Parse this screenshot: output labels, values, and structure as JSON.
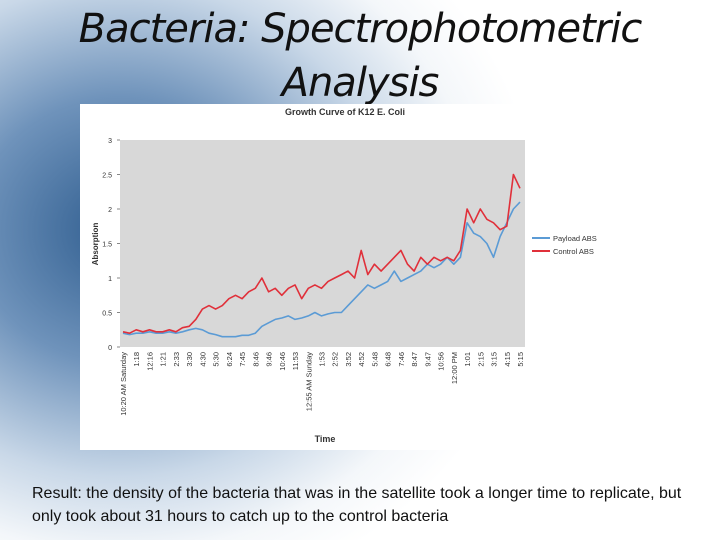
{
  "slide": {
    "title": "Bacteria: Spectrophotometric Analysis",
    "caption": "Result: the density of the bacteria that was in the satellite took a longer time to replicate, but only took about 31 hours to catch up to the control bacteria"
  },
  "chart_data": {
    "type": "line",
    "title": "Growth Curve of K12 E. Coli",
    "x_label": "Time",
    "y_label": "Absorption",
    "categories": [
      "10:20 AM Saturday",
      null,
      "1:18",
      null,
      "12:16",
      null,
      "1:21",
      null,
      "2:33",
      null,
      "3:30",
      null,
      "4:30",
      null,
      "5:30",
      null,
      "6:24",
      null,
      "7:45",
      null,
      "8:46",
      null,
      "9:46",
      null,
      "10:46",
      null,
      "11:53",
      null,
      "12:55 AM Sunday",
      null,
      "1:53",
      null,
      "2:52",
      null,
      "3:52",
      null,
      "4:52",
      null,
      "5:48",
      null,
      "6:48",
      null,
      "7:46",
      null,
      "8:47",
      null,
      "9:47",
      null,
      "10:56",
      null,
      "12:00 PM",
      null,
      "1:01",
      null,
      "2:15",
      null,
      "3:15",
      null,
      "4:15",
      null,
      "5:15"
    ],
    "series": [
      {
        "name": "Payload ABS",
        "color": "#5b9bd5",
        "values": [
          0.2,
          0.18,
          0.2,
          0.2,
          0.22,
          0.2,
          0.2,
          0.22,
          0.2,
          0.22,
          0.25,
          0.27,
          0.25,
          0.2,
          0.18,
          0.15,
          0.15,
          0.15,
          0.17,
          0.17,
          0.2,
          0.3,
          0.35,
          0.4,
          0.42,
          0.45,
          0.4,
          0.42,
          0.45,
          0.5,
          0.45,
          0.48,
          0.5,
          0.5,
          0.6,
          0.7,
          0.8,
          0.9,
          0.85,
          0.9,
          0.95,
          1.1,
          0.95,
          1.0,
          1.05,
          1.1,
          1.2,
          1.15,
          1.2,
          1.3,
          1.2,
          1.3,
          1.8,
          1.65,
          1.6,
          1.5,
          1.3,
          1.6,
          1.8,
          2.0,
          2.1
        ]
      },
      {
        "name": "Control ABS",
        "color": "#e0303a",
        "values": [
          0.22,
          0.2,
          0.25,
          0.22,
          0.25,
          0.22,
          0.22,
          0.25,
          0.22,
          0.28,
          0.3,
          0.4,
          0.55,
          0.6,
          0.55,
          0.6,
          0.7,
          0.75,
          0.7,
          0.8,
          0.85,
          1.0,
          0.8,
          0.85,
          0.75,
          0.85,
          0.9,
          0.7,
          0.85,
          0.9,
          0.85,
          0.95,
          1.0,
          1.05,
          1.1,
          1.0,
          1.4,
          1.05,
          1.2,
          1.1,
          1.2,
          1.3,
          1.4,
          1.2,
          1.1,
          1.3,
          1.2,
          1.3,
          1.25,
          1.3,
          1.25,
          1.4,
          2.0,
          1.8,
          2.0,
          1.85,
          1.8,
          1.7,
          1.75,
          2.5,
          2.3
        ]
      }
    ],
    "ylim": [
      0,
      3
    ],
    "yticks": [
      0,
      0.5,
      1,
      1.5,
      2,
      2.5,
      3
    ],
    "grid": false,
    "legend": "right"
  }
}
